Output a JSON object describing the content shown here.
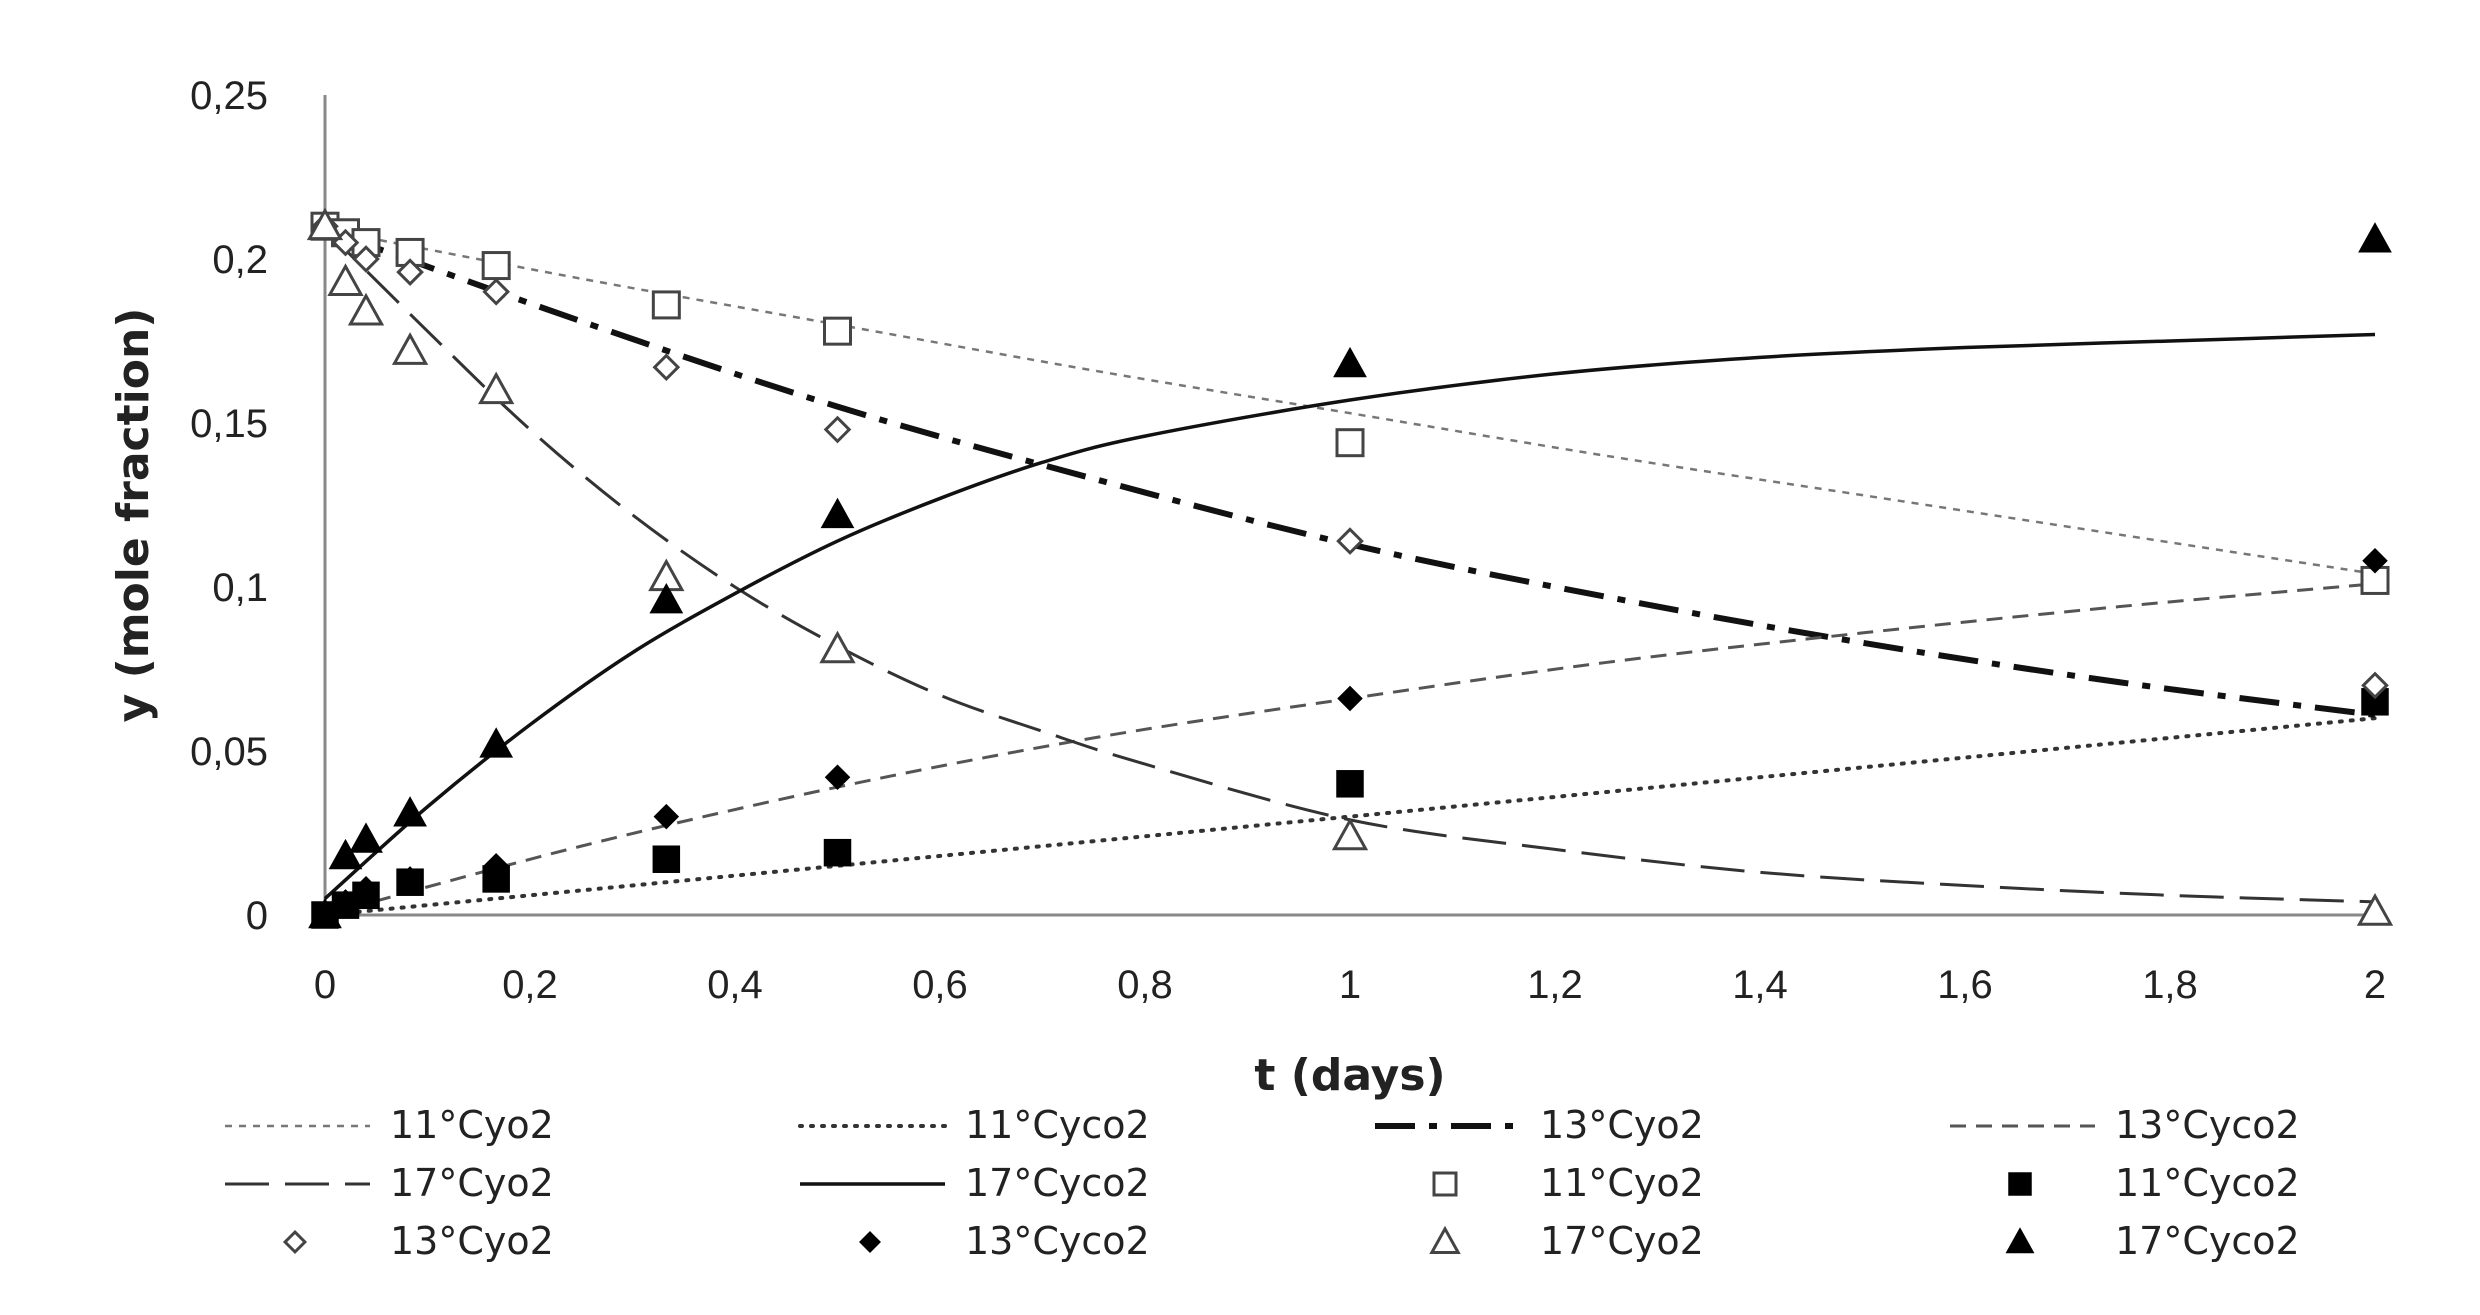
{
  "chart_data": {
    "type": "scatter",
    "xlabel": "t (days)",
    "ylabel": "y (mole fraction)",
    "xlim": [
      0,
      2
    ],
    "ylim": [
      0,
      0.25
    ],
    "x_ticks": [
      0,
      0.2,
      0.4,
      0.6,
      0.8,
      1,
      1.2,
      1.4,
      1.6,
      1.8,
      2
    ],
    "x_tick_labels": [
      "0",
      "0,2",
      "0,4",
      "0,6",
      "0,8",
      "1",
      "1,2",
      "1,4",
      "1,6",
      "1,8",
      "2"
    ],
    "y_ticks": [
      0,
      0.05,
      0.1,
      0.15,
      0.2,
      0.25
    ],
    "y_tick_labels": [
      "0",
      "0,05",
      "0,1",
      "0,15",
      "0,2",
      "0,25"
    ],
    "grid": false,
    "legend_position": "bottom",
    "lines": [
      {
        "name": "11°Cyo2",
        "style": "short-dash-thin",
        "color": "#777777",
        "x": [
          0,
          0.25,
          0.5,
          0.75,
          1,
          1.25,
          1.5,
          1.75,
          2
        ],
        "y": [
          0.209,
          0.194,
          0.18,
          0.166,
          0.153,
          0.14,
          0.128,
          0.116,
          0.104
        ]
      },
      {
        "name": "11°Cyco2",
        "style": "dotted",
        "color": "#333333",
        "x": [
          0,
          0.25,
          0.5,
          0.75,
          1,
          1.25,
          1.5,
          1.75,
          2
        ],
        "y": [
          0,
          0.0075,
          0.015,
          0.0225,
          0.03,
          0.0375,
          0.045,
          0.0525,
          0.06
        ]
      },
      {
        "name": "13°Cyo2",
        "style": "dash-dot-thick",
        "color": "#111111",
        "x": [
          0,
          0.25,
          0.5,
          0.75,
          1,
          1.25,
          1.5,
          1.75,
          2
        ],
        "y": [
          0.209,
          0.181,
          0.155,
          0.133,
          0.113,
          0.097,
          0.083,
          0.071,
          0.061
        ]
      },
      {
        "name": "13°Cyco2",
        "style": "dashed",
        "color": "#555555",
        "x": [
          0,
          0.25,
          0.5,
          0.75,
          1,
          1.25,
          1.5,
          1.75,
          2
        ],
        "y": [
          0,
          0.021,
          0.039,
          0.054,
          0.066,
          0.077,
          0.086,
          0.094,
          0.101
        ]
      },
      {
        "name": "17°Cyo2",
        "style": "long-dash",
        "color": "#333333",
        "x": [
          0,
          0.1,
          0.2,
          0.3,
          0.4,
          0.5,
          0.6,
          0.7,
          0.8,
          1,
          1.2,
          1.4,
          1.6,
          1.8,
          2
        ],
        "y": [
          0.209,
          0.178,
          0.148,
          0.122,
          0.1,
          0.082,
          0.067,
          0.056,
          0.046,
          0.029,
          0.02,
          0.013,
          0.009,
          0.006,
          0.004
        ]
      },
      {
        "name": "17°Cyco2",
        "style": "solid",
        "color": "#111111",
        "x": [
          0,
          0.1,
          0.2,
          0.3,
          0.4,
          0.5,
          0.6,
          0.7,
          0.8,
          1,
          1.2,
          1.4,
          1.6,
          1.8,
          2
        ],
        "y": [
          0.005,
          0.033,
          0.058,
          0.08,
          0.098,
          0.114,
          0.127,
          0.138,
          0.146,
          0.157,
          0.165,
          0.17,
          0.173,
          0.175,
          0.177
        ]
      }
    ],
    "markers": [
      {
        "name": "11°Cyo2",
        "shape": "square-open",
        "x": [
          0,
          0.02,
          0.04,
          0.083,
          0.167,
          0.333,
          0.5,
          1,
          2
        ],
        "y": [
          0.21,
          0.208,
          0.205,
          0.202,
          0.198,
          0.186,
          0.178,
          0.144,
          0.102
        ]
      },
      {
        "name": "11°Cyco2",
        "shape": "square-filled",
        "x": [
          0,
          0.02,
          0.04,
          0.083,
          0.167,
          0.333,
          0.5,
          1,
          2
        ],
        "y": [
          0,
          0.003,
          0.006,
          0.01,
          0.011,
          0.017,
          0.019,
          0.04,
          0.065
        ]
      },
      {
        "name": "13°Cyo2",
        "shape": "diamond-open",
        "x": [
          0,
          0.02,
          0.04,
          0.083,
          0.167,
          0.333,
          0.5,
          1,
          2
        ],
        "y": [
          0.21,
          0.205,
          0.2,
          0.196,
          0.19,
          0.167,
          0.148,
          0.114,
          0.07
        ]
      },
      {
        "name": "13°Cyco2",
        "shape": "diamond-filled",
        "x": [
          0,
          0.02,
          0.04,
          0.083,
          0.167,
          0.333,
          0.5,
          1,
          2
        ],
        "y": [
          0,
          0.004,
          0.008,
          0.011,
          0.015,
          0.03,
          0.042,
          0.066,
          0.108
        ]
      },
      {
        "name": "17°Cyo2",
        "shape": "triangle-open",
        "x": [
          0,
          0.02,
          0.04,
          0.083,
          0.167,
          0.333,
          0.5,
          1,
          2
        ],
        "y": [
          0.21,
          0.193,
          0.184,
          0.172,
          0.16,
          0.103,
          0.081,
          0.024,
          0.001
        ]
      },
      {
        "name": "17°Cyco2",
        "shape": "triangle-filled",
        "x": [
          0,
          0.02,
          0.04,
          0.083,
          0.167,
          0.333,
          0.5,
          1,
          2
        ],
        "y": [
          0,
          0.018,
          0.023,
          0.031,
          0.052,
          0.096,
          0.122,
          0.168,
          0.206
        ]
      }
    ],
    "legend": [
      {
        "label": "11°Cyo2",
        "kind": "line",
        "ref": 0
      },
      {
        "label": "11°Cyco2",
        "kind": "line",
        "ref": 1
      },
      {
        "label": "13°Cyo2",
        "kind": "line",
        "ref": 2
      },
      {
        "label": "13°Cyco2",
        "kind": "line",
        "ref": 3
      },
      {
        "label": "17°Cyo2",
        "kind": "line",
        "ref": 4
      },
      {
        "label": "17°Cyco2",
        "kind": "line",
        "ref": 5
      },
      {
        "label": "11°Cyo2",
        "kind": "marker",
        "ref": 0
      },
      {
        "label": "11°Cyco2",
        "kind": "marker",
        "ref": 1
      },
      {
        "label": "13°Cyo2",
        "kind": "marker",
        "ref": 2
      },
      {
        "label": "13°Cyco2",
        "kind": "marker",
        "ref": 3
      },
      {
        "label": "17°Cyo2",
        "kind": "marker",
        "ref": 4
      },
      {
        "label": "17°Cyco2",
        "kind": "marker",
        "ref": 5
      }
    ]
  }
}
